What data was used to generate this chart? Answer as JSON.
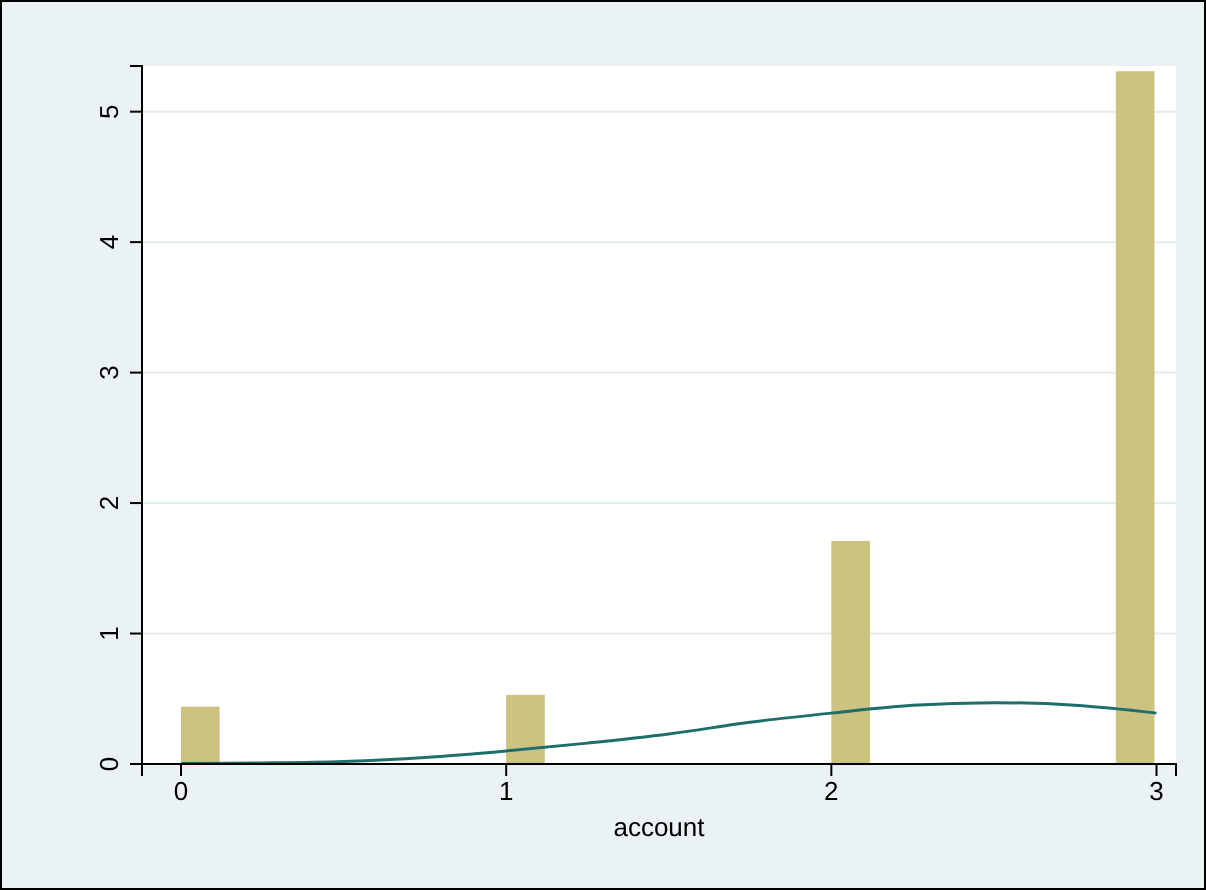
{
  "chart_data": {
    "type": "histogram",
    "xlabel": "account",
    "bins": [
      0,
      0.125,
      0.25,
      0.375,
      0.5,
      0.625,
      0.75,
      0.875,
      1,
      1.125,
      1.25,
      1.375,
      1.5,
      1.625,
      1.75,
      1.875,
      2,
      2.125,
      2.25,
      2.375,
      2.5,
      2.625,
      2.75,
      2.875,
      3
    ],
    "values": [
      0.44,
      0,
      0,
      0,
      0,
      0,
      0,
      0,
      0.53,
      0,
      0,
      0,
      0,
      0,
      0,
      0,
      1.71,
      0,
      0,
      0,
      0,
      0,
      0,
      5.31
    ],
    "color": "#cdc380",
    "series": [
      {
        "type": "line",
        "color": "#1e6f69",
        "x": [
          0,
          0.25,
          0.5,
          0.75,
          1,
          1.25,
          1.5,
          1.75,
          2,
          2.25,
          2.5,
          2.75,
          3
        ],
        "values": [
          0.003,
          0.008,
          0.02,
          0.05,
          0.1,
          0.16,
          0.23,
          0.32,
          0.39,
          0.45,
          0.47,
          0.45,
          0.39
        ]
      }
    ],
    "xlim": [
      -0.12,
      3.06
    ],
    "ylim": [
      0,
      5.35
    ],
    "xticks": [
      0,
      1,
      2,
      3
    ],
    "yticks": [
      0,
      1,
      2,
      3,
      4,
      5
    ],
    "grid": "y"
  }
}
